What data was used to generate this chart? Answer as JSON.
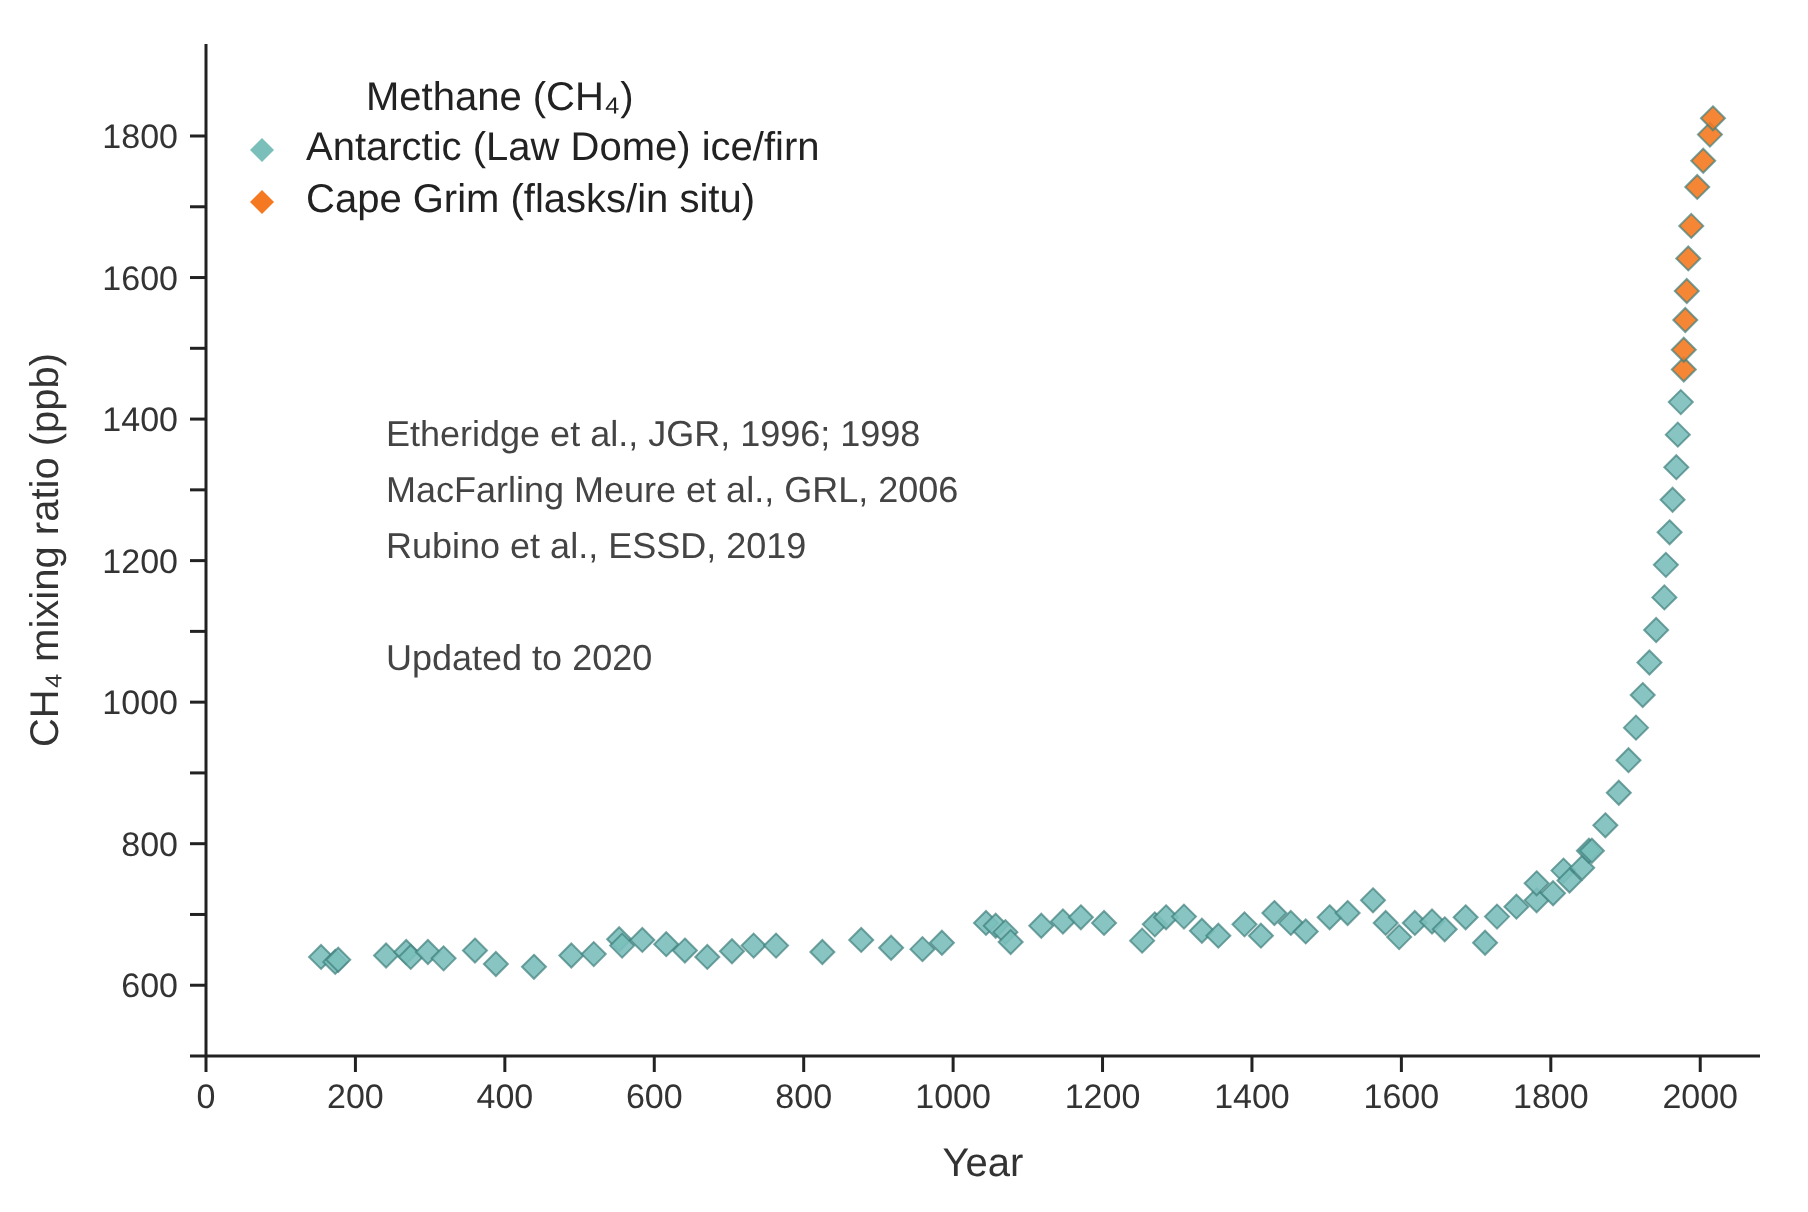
{
  "chart_data": {
    "type": "scatter",
    "xlabel": "Year",
    "ylabel": "CH₄ mixing ratio (ppb)",
    "legend_title": "Methane (CH₄)",
    "legend": "top left",
    "marker": "diamond",
    "xlim": [
      0,
      2080
    ],
    "xticks": [
      0,
      200,
      400,
      600,
      800,
      1000,
      1200,
      1400,
      1600,
      1800,
      2000
    ],
    "ylim": [
      500,
      1930
    ],
    "yticks": [
      {
        "value": 500,
        "label": null
      },
      600,
      {
        "value": 700,
        "label": null
      },
      800,
      {
        "value": 900,
        "label": null
      },
      1000,
      {
        "value": 1100,
        "label": null
      },
      1200,
      {
        "value": 1300,
        "label": null
      },
      1400,
      {
        "value": 1500,
        "label": null
      },
      1600,
      {
        "value": 1700,
        "label": null
      },
      1800
    ],
    "annotations": [
      "Etheridge et al., JGR, 1996; 1998",
      "MacFarling Meure et al., GRL, 2006",
      "Rubino et al., ESSD, 2019",
      "Updated to 2020"
    ],
    "series": [
      {
        "name": "Antarctic (Law Dome) ice/firn",
        "color": "#7bbfbb",
        "x": [
          154,
          173,
          177,
          241,
          268,
          274,
          297,
          318,
          360,
          388,
          439,
          489,
          519,
          553,
          557,
          584,
          616,
          641,
          671,
          704,
          733,
          763,
          825,
          877,
          917,
          959,
          985,
          1044,
          1057,
          1070,
          1077,
          1118,
          1147,
          1171,
          1202,
          1253,
          1270,
          1285,
          1309,
          1333,
          1355,
          1390,
          1412,
          1430,
          1452,
          1472,
          1504,
          1528,
          1562,
          1579,
          1597,
          1618,
          1641,
          1658,
          1686,
          1712,
          1728,
          1754,
          1781,
          1781,
          1803,
          1817,
          1825,
          1842,
          1851,
          1855,
          1873,
          1891,
          1904,
          1914,
          1923,
          1932,
          1941,
          1952,
          1954,
          1959,
          1963,
          1968,
          1970,
          1974
        ],
        "values": [
          640,
          633,
          636,
          642,
          647,
          640,
          647,
          638,
          649,
          630,
          626,
          642,
          644,
          665,
          656,
          664,
          658,
          649,
          640,
          648,
          656,
          656,
          647,
          664,
          653,
          651,
          660,
          688,
          684,
          675,
          661,
          684,
          690,
          696,
          688,
          663,
          686,
          696,
          697,
          677,
          670,
          686,
          670,
          702,
          688,
          676,
          696,
          702,
          720,
          688,
          668,
          688,
          690,
          679,
          696,
          660,
          697,
          711,
          720,
          744,
          730,
          762,
          748,
          766,
          790,
          790,
          826,
          872,
          918,
          964,
          1010,
          1056,
          1102,
          1148,
          1194,
          1240,
          1286,
          1332,
          1378,
          1424
        ]
      },
      {
        "name": "Cape Grim (flasks/in situ)",
        "color": "#f47920",
        "x": [
          1978,
          1978,
          1980,
          1982,
          1984,
          1988,
          1996,
          2004,
          2013,
          2017
        ],
        "values": [
          1470,
          1498,
          1540,
          1581,
          1627,
          1673,
          1728,
          1765,
          1802,
          1825
        ]
      }
    ]
  }
}
